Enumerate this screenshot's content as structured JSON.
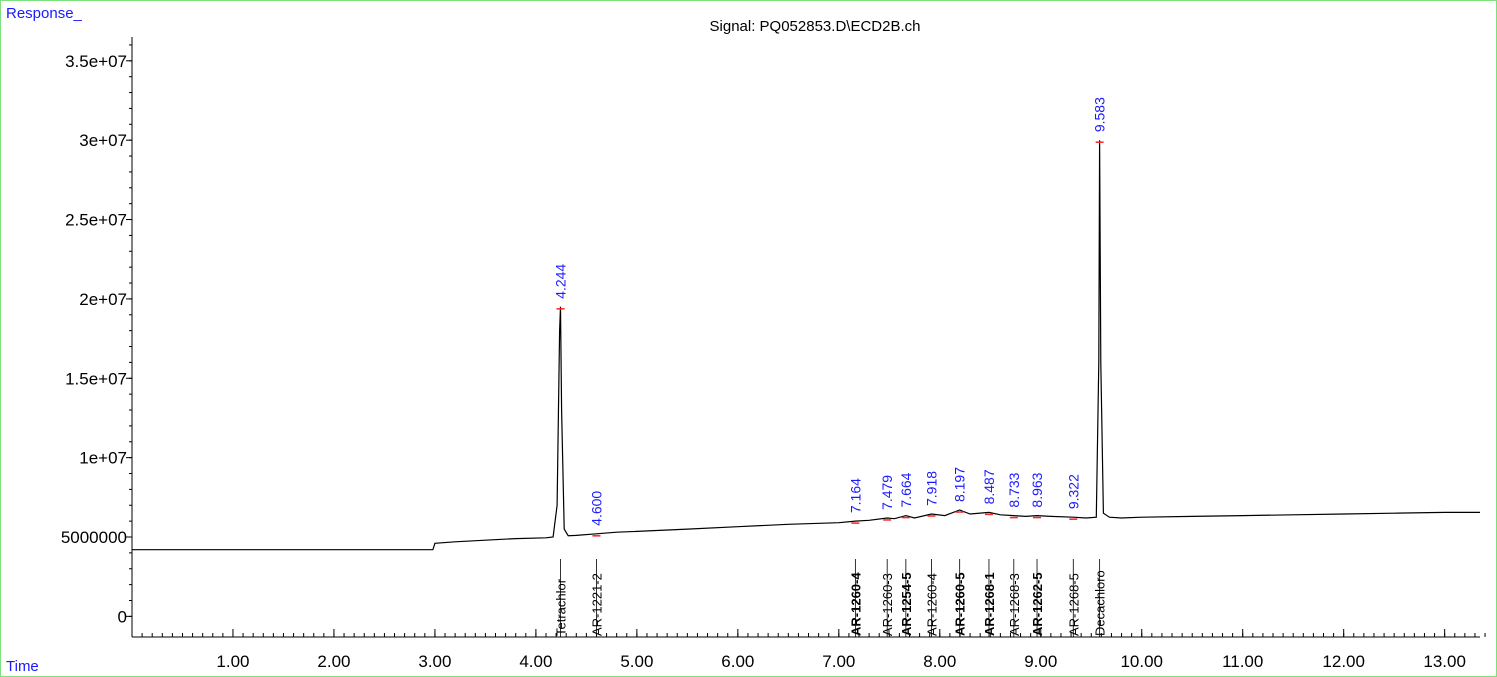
{
  "colors": {
    "frame": "#7ee07e",
    "axis_name": "#1a1aff",
    "peak_label": "#1a1aff",
    "trace": "#000000",
    "baseline_marker": "#ff2020"
  },
  "chart_data": {
    "type": "line",
    "title": "Signal: PQ052853.D\\ECD2B.ch",
    "xlabel": "Time",
    "ylabel": "Response_",
    "xlim": [
      0.0,
      13.35
    ],
    "ylim": [
      -1300000,
      36500000
    ],
    "x_ticks": [
      1,
      2,
      3,
      4,
      5,
      6,
      7,
      8,
      9,
      10,
      11,
      12,
      13
    ],
    "x_tick_labels": [
      "1.00",
      "2.00",
      "3.00",
      "4.00",
      "5.00",
      "6.00",
      "7.00",
      "8.00",
      "9.00",
      "10.00",
      "11.00",
      "12.00",
      "13.00"
    ],
    "x_minor_step": 0.1,
    "y_ticks": [
      0,
      5000000,
      10000000,
      15000000,
      20000000,
      25000000,
      30000000,
      35000000
    ],
    "y_tick_labels": [
      "0",
      "5000000",
      "1e+07",
      "1.5e+07",
      "2e+07",
      "2.5e+07",
      "3e+07",
      "3.5e+07"
    ],
    "grid": false,
    "series": [
      {
        "x": [
          0.0,
          2.98,
          3.0,
          3.2,
          3.5,
          3.8,
          4.1,
          4.17,
          4.21,
          4.235,
          4.244,
          4.255,
          4.28,
          4.32,
          4.4,
          4.6,
          4.8,
          5.0,
          5.5,
          6.0,
          6.5,
          7.0,
          7.164,
          7.3,
          7.479,
          7.55,
          7.664,
          7.75,
          7.918,
          8.05,
          8.197,
          8.3,
          8.487,
          8.6,
          8.733,
          8.85,
          8.963,
          9.1,
          9.322,
          9.45,
          9.55,
          9.575,
          9.583,
          9.595,
          9.62,
          9.68,
          9.8,
          10.0,
          10.5,
          11.0,
          11.5,
          12.0,
          12.5,
          13.0,
          13.35
        ],
        "y": [
          4200000,
          4200000,
          4600000,
          4700000,
          4800000,
          4900000,
          4950000,
          5000000,
          7000000,
          18000000,
          19500000,
          13000000,
          5500000,
          5080000,
          5100000,
          5200000,
          5300000,
          5350000,
          5500000,
          5650000,
          5800000,
          5900000,
          6000000,
          6050000,
          6200000,
          6150000,
          6350000,
          6200000,
          6450000,
          6350000,
          6700000,
          6450000,
          6550000,
          6400000,
          6350000,
          6300000,
          6350000,
          6300000,
          6250000,
          6200000,
          6250000,
          16000000,
          30000000,
          16000000,
          6500000,
          6250000,
          6200000,
          6250000,
          6300000,
          6350000,
          6400000,
          6450000,
          6500000,
          6550000,
          6550000
        ]
      }
    ],
    "peaks": [
      {
        "rt": "4.244",
        "x": 4.244,
        "y": 19500000
      },
      {
        "rt": "4.600",
        "x": 4.6,
        "y": 5200000
      },
      {
        "rt": "7.164",
        "x": 7.164,
        "y": 6000000
      },
      {
        "rt": "7.479",
        "x": 7.479,
        "y": 6200000
      },
      {
        "rt": "7.664",
        "x": 7.664,
        "y": 6350000
      },
      {
        "rt": "7.918",
        "x": 7.918,
        "y": 6450000
      },
      {
        "rt": "8.197",
        "x": 8.197,
        "y": 6700000
      },
      {
        "rt": "8.487",
        "x": 8.487,
        "y": 6550000
      },
      {
        "rt": "8.733",
        "x": 8.733,
        "y": 6350000
      },
      {
        "rt": "8.963",
        "x": 8.963,
        "y": 6350000
      },
      {
        "rt": "9.322",
        "x": 9.322,
        "y": 6250000
      },
      {
        "rt": "9.583",
        "x": 9.583,
        "y": 30000000
      }
    ],
    "compound_labels": [
      {
        "text": "Tetrachlor",
        "x": 4.244,
        "bold": false
      },
      {
        "text": "AR-1221-2",
        "x": 4.6,
        "bold": false
      },
      {
        "text": "AR-1260-4",
        "x": 7.164,
        "bold": true
      },
      {
        "text": "AR-1260-3",
        "x": 7.479,
        "bold": false
      },
      {
        "text": "AR-1254-5",
        "x": 7.664,
        "bold": true
      },
      {
        "text": "AR-1260-4",
        "x": 7.918,
        "bold": false
      },
      {
        "text": "AR-1260-5",
        "x": 8.197,
        "bold": true
      },
      {
        "text": "AR-1268-1",
        "x": 8.487,
        "bold": true
      },
      {
        "text": "AR-1268-3",
        "x": 8.733,
        "bold": false
      },
      {
        "text": "AR-1262-5",
        "x": 8.963,
        "bold": true
      },
      {
        "text": "AR-1268-5",
        "x": 9.322,
        "bold": false
      },
      {
        "text": "Decachloro",
        "x": 9.583,
        "bold": false
      }
    ]
  }
}
